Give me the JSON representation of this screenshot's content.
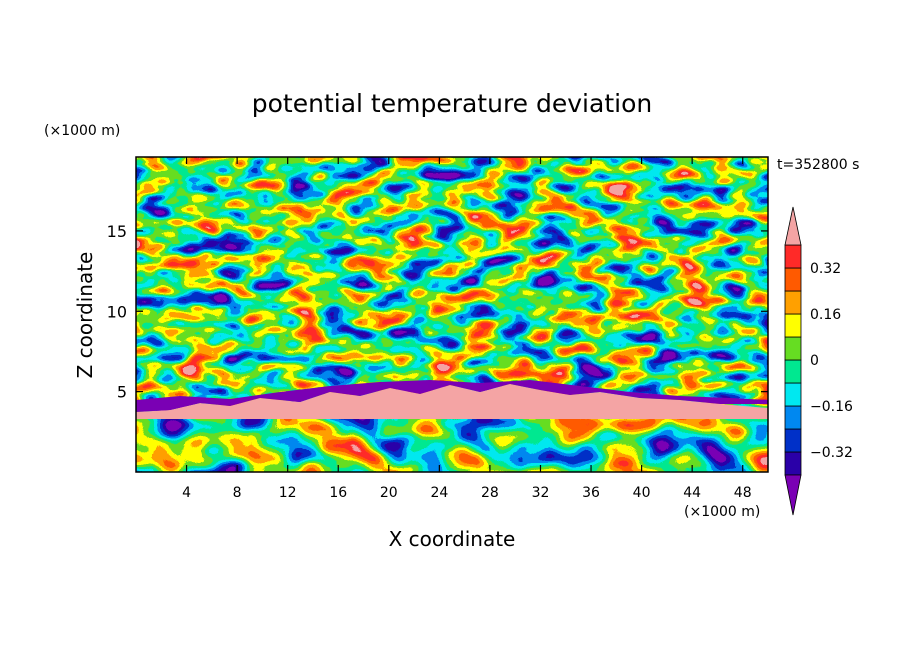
{
  "chart_data": {
    "type": "heatmap",
    "title": "potential temperature deviation",
    "xlabel": "X coordinate",
    "ylabel": "Z coordinate",
    "x_unit": "(×1000 m)",
    "y_unit": "(×1000 m)",
    "time_label": "t=352800 s",
    "xlim": [
      0,
      50
    ],
    "ylim": [
      0,
      19.6
    ],
    "x_ticks": [
      4,
      8,
      12,
      16,
      20,
      24,
      28,
      32,
      36,
      40,
      44,
      48
    ],
    "y_ticks": [
      5,
      10,
      15
    ],
    "colorbar": {
      "levels": [
        -0.4,
        -0.32,
        -0.24,
        -0.16,
        -0.08,
        0,
        0.08,
        0.16,
        0.24,
        0.32,
        0.4
      ],
      "labels": [
        "0.32",
        "0.16",
        "0",
        "−0.16",
        "−0.32"
      ],
      "label_values": [
        0.32,
        0.16,
        0,
        -0.16,
        -0.32
      ],
      "colors": [
        "#7a00b4",
        "#2a00a8",
        "#0030c8",
        "#0088f0",
        "#00e8f0",
        "#00e890",
        "#66dd22",
        "#ffff00",
        "#ffa000",
        "#ff5a00",
        "#ff2a28",
        "#f4a4a4"
      ]
    }
  }
}
